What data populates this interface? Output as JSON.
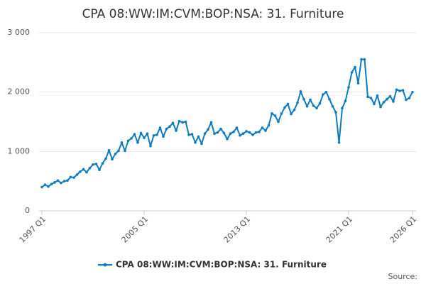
{
  "chart_data": {
    "type": "line",
    "title": "CPA 08:WW:IM:CVM:BOP:NSA: 31. Furniture",
    "source": "Source:",
    "categories": [
      "1997 Q1",
      null,
      null,
      null,
      null,
      null,
      null,
      null,
      null,
      null,
      null,
      null,
      null,
      null,
      null,
      null,
      null,
      null,
      null,
      null,
      null,
      null,
      null,
      null,
      null,
      null,
      null,
      null,
      null,
      null,
      null,
      null,
      "2005 Q1",
      null,
      null,
      null,
      null,
      null,
      null,
      null,
      null,
      null,
      null,
      null,
      null,
      null,
      null,
      null,
      null,
      null,
      null,
      null,
      null,
      null,
      null,
      null,
      null,
      null,
      null,
      null,
      null,
      null,
      null,
      null,
      "2013 Q1",
      null,
      null,
      null,
      null,
      null,
      null,
      null,
      null,
      null,
      null,
      null,
      null,
      null,
      null,
      null,
      null,
      null,
      null,
      null,
      null,
      null,
      null,
      null,
      null,
      null,
      null,
      null,
      null,
      null,
      null,
      null,
      "2021 Q1",
      null,
      null,
      null,
      null,
      null,
      null,
      null,
      null,
      null,
      null,
      null,
      null,
      null,
      null,
      null,
      null,
      null,
      null,
      null,
      "2026 Q1"
    ],
    "series": [
      {
        "name": "CPA 08:WW:IM:CVM:BOP:NSA: 31. Furniture",
        "color": "#0d7bbf",
        "values": [
          400,
          440,
          410,
          450,
          480,
          510,
          470,
          500,
          510,
          570,
          560,
          610,
          660,
          700,
          650,
          720,
          780,
          790,
          690,
          800,
          880,
          1020,
          870,
          960,
          1010,
          1150,
          1010,
          1180,
          1220,
          1290,
          1150,
          1310,
          1230,
          1300,
          1090,
          1270,
          1280,
          1400,
          1250,
          1380,
          1420,
          1480,
          1350,
          1510,
          1490,
          1500,
          1280,
          1290,
          1150,
          1250,
          1130,
          1300,
          1370,
          1490,
          1300,
          1320,
          1380,
          1310,
          1210,
          1300,
          1330,
          1400,
          1270,
          1300,
          1340,
          1320,
          1280,
          1320,
          1330,
          1400,
          1350,
          1440,
          1640,
          1600,
          1500,
          1640,
          1740,
          1800,
          1630,
          1700,
          1820,
          2010,
          1880,
          1760,
          1870,
          1770,
          1730,
          1810,
          1960,
          2000,
          1880,
          1760,
          1660,
          1150,
          1730,
          1850,
          2080,
          2330,
          2420,
          2150,
          2550,
          2550,
          1920,
          1900,
          1800,
          1940,
          1750,
          1830,
          1880,
          1930,
          1840,
          2040,
          2020,
          2030,
          1870,
          1900,
          2000
        ]
      }
    ],
    "ylim": [
      0,
      3000
    ],
    "yticks": [
      0,
      {
        "value": 1000,
        "label": "1 000"
      },
      {
        "value": 2000,
        "label": "2 000"
      },
      {
        "value": 3000,
        "label": "3 000"
      }
    ],
    "grid": true
  }
}
